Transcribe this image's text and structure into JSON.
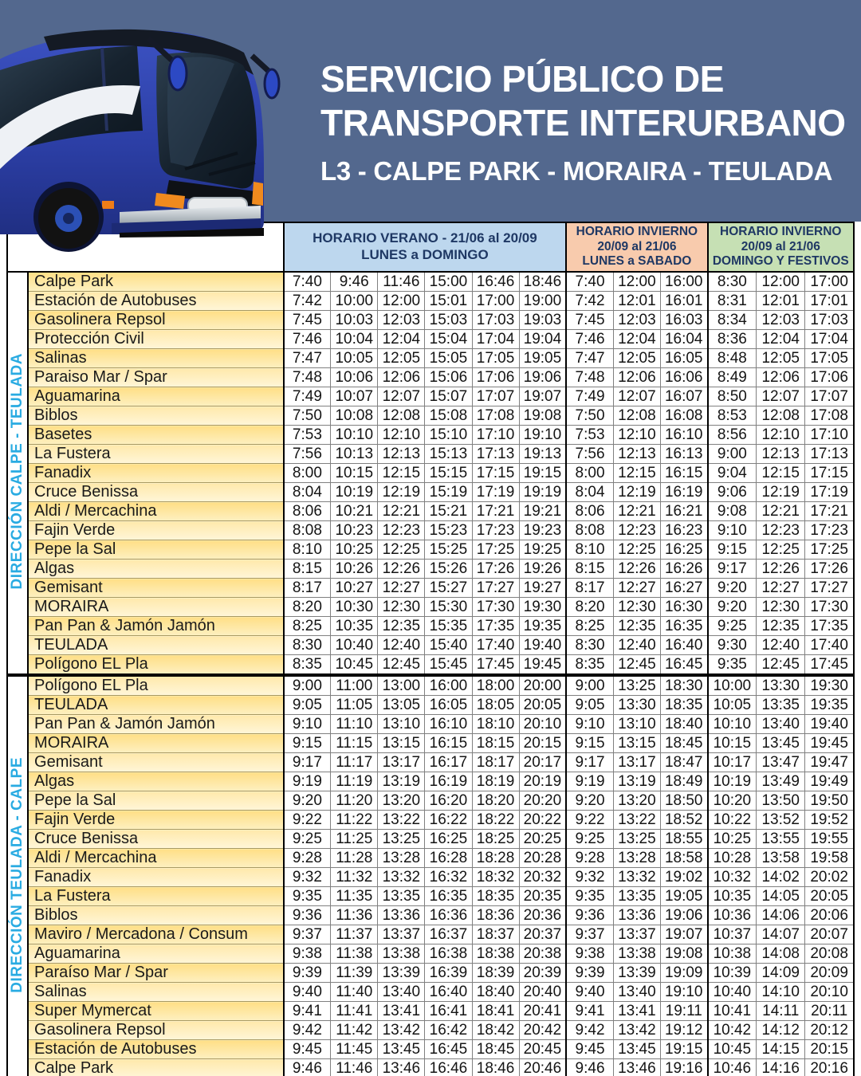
{
  "banner": {
    "title_line1": "SERVICIO PÚBLICO DE",
    "title_line2": "TRANSPORTE INTERURBANO",
    "subtitle": "L3 - CALPE PARK - MORAIRA - TEULADA"
  },
  "colors": {
    "banner_bg": "#53688e",
    "summer_header_bg": "#bdd7ee",
    "winter_weekday_header_bg": "#f8cbad",
    "winter_holiday_header_bg": "#c6e0b4",
    "header_text": "#1f3864",
    "stop_cell_bg": "#ffe18a",
    "direction_text": "#29abe2",
    "bus_blue": "#2e3fa0"
  },
  "table": {
    "header_groups": [
      {
        "lines": [
          "HORARIO VERANO - 21/06 al 20/09",
          "LUNES a DOMINGO"
        ]
      },
      {
        "lines": [
          "HORARIO INVIERNO",
          "20/09 al 21/06",
          "LUNES a SABADO"
        ]
      },
      {
        "lines": [
          "HORARIO INVIERNO",
          "20/09 al 21/06",
          "DOMINGO Y FESTIVOS"
        ]
      }
    ],
    "sections": [
      {
        "direction": "DIRECCIÓN CALPE - TEULADA",
        "rows": [
          {
            "stop": "Calpe Park",
            "times": [
              "7:40",
              "9:46",
              "11:46",
              "15:00",
              "16:46",
              "18:46",
              "7:40",
              "12:00",
              "16:00",
              "8:30",
              "12:00",
              "17:00"
            ]
          },
          {
            "stop": "Estación de Autobuses",
            "times": [
              "7:42",
              "10:00",
              "12:00",
              "15:01",
              "17:00",
              "19:00",
              "7:42",
              "12:01",
              "16:01",
              "8:31",
              "12:01",
              "17:01"
            ]
          },
          {
            "stop": "Gasolinera Repsol",
            "times": [
              "7:45",
              "10:03",
              "12:03",
              "15:03",
              "17:03",
              "19:03",
              "7:45",
              "12:03",
              "16:03",
              "8:34",
              "12:03",
              "17:03"
            ]
          },
          {
            "stop": "Protección Civil",
            "times": [
              "7:46",
              "10:04",
              "12:04",
              "15:04",
              "17:04",
              "19:04",
              "7:46",
              "12:04",
              "16:04",
              "8:36",
              "12:04",
              "17:04"
            ]
          },
          {
            "stop": "Salinas",
            "times": [
              "7:47",
              "10:05",
              "12:05",
              "15:05",
              "17:05",
              "19:05",
              "7:47",
              "12:05",
              "16:05",
              "8:48",
              "12:05",
              "17:05"
            ]
          },
          {
            "stop": "Paraiso Mar / Spar",
            "times": [
              "7:48",
              "10:06",
              "12:06",
              "15:06",
              "17:06",
              "19:06",
              "7:48",
              "12:06",
              "16:06",
              "8:49",
              "12:06",
              "17:06"
            ]
          },
          {
            "stop": "Aguamarina",
            "times": [
              "7:49",
              "10:07",
              "12:07",
              "15:07",
              "17:07",
              "19:07",
              "7:49",
              "12:07",
              "16:07",
              "8:50",
              "12:07",
              "17:07"
            ]
          },
          {
            "stop": "Biblos",
            "times": [
              "7:50",
              "10:08",
              "12:08",
              "15:08",
              "17:08",
              "19:08",
              "7:50",
              "12:08",
              "16:08",
              "8:53",
              "12:08",
              "17:08"
            ]
          },
          {
            "stop": "Basetes",
            "times": [
              "7:53",
              "10:10",
              "12:10",
              "15:10",
              "17:10",
              "19:10",
              "7:53",
              "12:10",
              "16:10",
              "8:56",
              "12:10",
              "17:10"
            ]
          },
          {
            "stop": "La Fustera",
            "times": [
              "7:56",
              "10:13",
              "12:13",
              "15:13",
              "17:13",
              "19:13",
              "7:56",
              "12:13",
              "16:13",
              "9:00",
              "12:13",
              "17:13"
            ]
          },
          {
            "stop": "Fanadix",
            "times": [
              "8:00",
              "10:15",
              "12:15",
              "15:15",
              "17:15",
              "19:15",
              "8:00",
              "12:15",
              "16:15",
              "9:04",
              "12:15",
              "17:15"
            ]
          },
          {
            "stop": "Cruce Benissa",
            "times": [
              "8:04",
              "10:19",
              "12:19",
              "15:19",
              "17:19",
              "19:19",
              "8:04",
              "12:19",
              "16:19",
              "9:06",
              "12:19",
              "17:19"
            ]
          },
          {
            "stop": "Aldi / Mercachina",
            "times": [
              "8:06",
              "10:21",
              "12:21",
              "15:21",
              "17:21",
              "19:21",
              "8:06",
              "12:21",
              "16:21",
              "9:08",
              "12:21",
              "17:21"
            ]
          },
          {
            "stop": "Fajin Verde",
            "times": [
              "8:08",
              "10:23",
              "12:23",
              "15:23",
              "17:23",
              "19:23",
              "8:08",
              "12:23",
              "16:23",
              "9:10",
              "12:23",
              "17:23"
            ]
          },
          {
            "stop": "Pepe la Sal",
            "times": [
              "8:10",
              "10:25",
              "12:25",
              "15:25",
              "17:25",
              "19:25",
              "8:10",
              "12:25",
              "16:25",
              "9:15",
              "12:25",
              "17:25"
            ]
          },
          {
            "stop": "Algas",
            "times": [
              "8:15",
              "10:26",
              "12:26",
              "15:26",
              "17:26",
              "19:26",
              "8:15",
              "12:26",
              "16:26",
              "9:17",
              "12:26",
              "17:26"
            ]
          },
          {
            "stop": "Gemisant",
            "times": [
              "8:17",
              "10:27",
              "12:27",
              "15:27",
              "17:27",
              "19:27",
              "8:17",
              "12:27",
              "16:27",
              "9:20",
              "12:27",
              "17:27"
            ]
          },
          {
            "stop": "MORAIRA",
            "times": [
              "8:20",
              "10:30",
              "12:30",
              "15:30",
              "17:30",
              "19:30",
              "8:20",
              "12:30",
              "16:30",
              "9:20",
              "12:30",
              "17:30"
            ]
          },
          {
            "stop": "Pan Pan & Jamón Jamón",
            "times": [
              "8:25",
              "10:35",
              "12:35",
              "15:35",
              "17:35",
              "19:35",
              "8:25",
              "12:35",
              "16:35",
              "9:25",
              "12:35",
              "17:35"
            ]
          },
          {
            "stop": "TEULADA",
            "times": [
              "8:30",
              "10:40",
              "12:40",
              "15:40",
              "17:40",
              "19:40",
              "8:30",
              "12:40",
              "16:40",
              "9:30",
              "12:40",
              "17:40"
            ]
          },
          {
            "stop": "Polígono EL Pla",
            "times": [
              "8:35",
              "10:45",
              "12:45",
              "15:45",
              "17:45",
              "19:45",
              "8:35",
              "12:45",
              "16:45",
              "9:35",
              "12:45",
              "17:45"
            ]
          }
        ]
      },
      {
        "direction": "DIRECCIÓN TEULADA - CALPE",
        "rows": [
          {
            "stop": "Polígono EL Pla",
            "times": [
              "9:00",
              "11:00",
              "13:00",
              "16:00",
              "18:00",
              "20:00",
              "9:00",
              "13:25",
              "18:30",
              "10:00",
              "13:30",
              "19:30"
            ]
          },
          {
            "stop": "TEULADA",
            "times": [
              "9:05",
              "11:05",
              "13:05",
              "16:05",
              "18:05",
              "20:05",
              "9:05",
              "13:30",
              "18:35",
              "10:05",
              "13:35",
              "19:35"
            ]
          },
          {
            "stop": "Pan Pan & Jamón Jamón",
            "times": [
              "9:10",
              "11:10",
              "13:10",
              "16:10",
              "18:10",
              "20:10",
              "9:10",
              "13:10",
              "18:40",
              "10:10",
              "13:40",
              "19:40"
            ]
          },
          {
            "stop": "MORAIRA",
            "times": [
              "9:15",
              "11:15",
              "13:15",
              "16:15",
              "18:15",
              "20:15",
              "9:15",
              "13:15",
              "18:45",
              "10:15",
              "13:45",
              "19:45"
            ]
          },
          {
            "stop": "Gemisant",
            "times": [
              "9:17",
              "11:17",
              "13:17",
              "16:17",
              "18:17",
              "20:17",
              "9:17",
              "13:17",
              "18:47",
              "10:17",
              "13:47",
              "19:47"
            ]
          },
          {
            "stop": "Algas",
            "times": [
              "9:19",
              "11:19",
              "13:19",
              "16:19",
              "18:19",
              "20:19",
              "9:19",
              "13:19",
              "18:49",
              "10:19",
              "13:49",
              "19:49"
            ]
          },
          {
            "stop": "Pepe la Sal",
            "times": [
              "9:20",
              "11:20",
              "13:20",
              "16:20",
              "18:20",
              "20:20",
              "9:20",
              "13:20",
              "18:50",
              "10:20",
              "13:50",
              "19:50"
            ]
          },
          {
            "stop": "Fajin Verde",
            "times": [
              "9:22",
              "11:22",
              "13:22",
              "16:22",
              "18:22",
              "20:22",
              "9:22",
              "13:22",
              "18:52",
              "10:22",
              "13:52",
              "19:52"
            ]
          },
          {
            "stop": "Cruce Benissa",
            "times": [
              "9:25",
              "11:25",
              "13:25",
              "16:25",
              "18:25",
              "20:25",
              "9:25",
              "13:25",
              "18:55",
              "10:25",
              "13:55",
              "19:55"
            ]
          },
          {
            "stop": "Aldi / Mercachina",
            "times": [
              "9:28",
              "11:28",
              "13:28",
              "16:28",
              "18:28",
              "20:28",
              "9:28",
              "13:28",
              "18:58",
              "10:28",
              "13:58",
              "19:58"
            ]
          },
          {
            "stop": "Fanadix",
            "times": [
              "9:32",
              "11:32",
              "13:32",
              "16:32",
              "18:32",
              "20:32",
              "9:32",
              "13:32",
              "19:02",
              "10:32",
              "14:02",
              "20:02"
            ]
          },
          {
            "stop": "La Fustera",
            "times": [
              "9:35",
              "11:35",
              "13:35",
              "16:35",
              "18:35",
              "20:35",
              "9:35",
              "13:35",
              "19:05",
              "10:35",
              "14:05",
              "20:05"
            ]
          },
          {
            "stop": "Biblos",
            "times": [
              "9:36",
              "11:36",
              "13:36",
              "16:36",
              "18:36",
              "20:36",
              "9:36",
              "13:36",
              "19:06",
              "10:36",
              "14:06",
              "20:06"
            ]
          },
          {
            "stop": "Maviro / Mercadona / Consum",
            "times": [
              "9:37",
              "11:37",
              "13:37",
              "16:37",
              "18:37",
              "20:37",
              "9:37",
              "13:37",
              "19:07",
              "10:37",
              "14:07",
              "20:07"
            ]
          },
          {
            "stop": "Aguamarina",
            "times": [
              "9:38",
              "11:38",
              "13:38",
              "16:38",
              "18:38",
              "20:38",
              "9:38",
              "13:38",
              "19:08",
              "10:38",
              "14:08",
              "20:08"
            ]
          },
          {
            "stop": "Paraíso Mar / Spar",
            "times": [
              "9:39",
              "11:39",
              "13:39",
              "16:39",
              "18:39",
              "20:39",
              "9:39",
              "13:39",
              "19:09",
              "10:39",
              "14:09",
              "20:09"
            ]
          },
          {
            "stop": "Salinas",
            "times": [
              "9:40",
              "11:40",
              "13:40",
              "16:40",
              "18:40",
              "20:40",
              "9:40",
              "13:40",
              "19:10",
              "10:40",
              "14:10",
              "20:10"
            ]
          },
          {
            "stop": "Super Mymercat",
            "times": [
              "9:41",
              "11:41",
              "13:41",
              "16:41",
              "18:41",
              "20:41",
              "9:41",
              "13:41",
              "19:11",
              "10:41",
              "14:11",
              "20:11"
            ]
          },
          {
            "stop": "Gasolinera Repsol",
            "times": [
              "9:42",
              "11:42",
              "13:42",
              "16:42",
              "18:42",
              "20:42",
              "9:42",
              "13:42",
              "19:12",
              "10:42",
              "14:12",
              "20:12"
            ]
          },
          {
            "stop": "Estación de Autobuses",
            "times": [
              "9:45",
              "11:45",
              "13:45",
              "16:45",
              "18:45",
              "20:45",
              "9:45",
              "13:45",
              "19:15",
              "10:45",
              "14:15",
              "20:15"
            ]
          },
          {
            "stop": "Calpe Park",
            "times": [
              "9:46",
              "11:46",
              "13:46",
              "16:46",
              "18:46",
              "20:46",
              "9:46",
              "13:46",
              "19:16",
              "10:46",
              "14:16",
              "20:16"
            ]
          }
        ]
      }
    ]
  }
}
